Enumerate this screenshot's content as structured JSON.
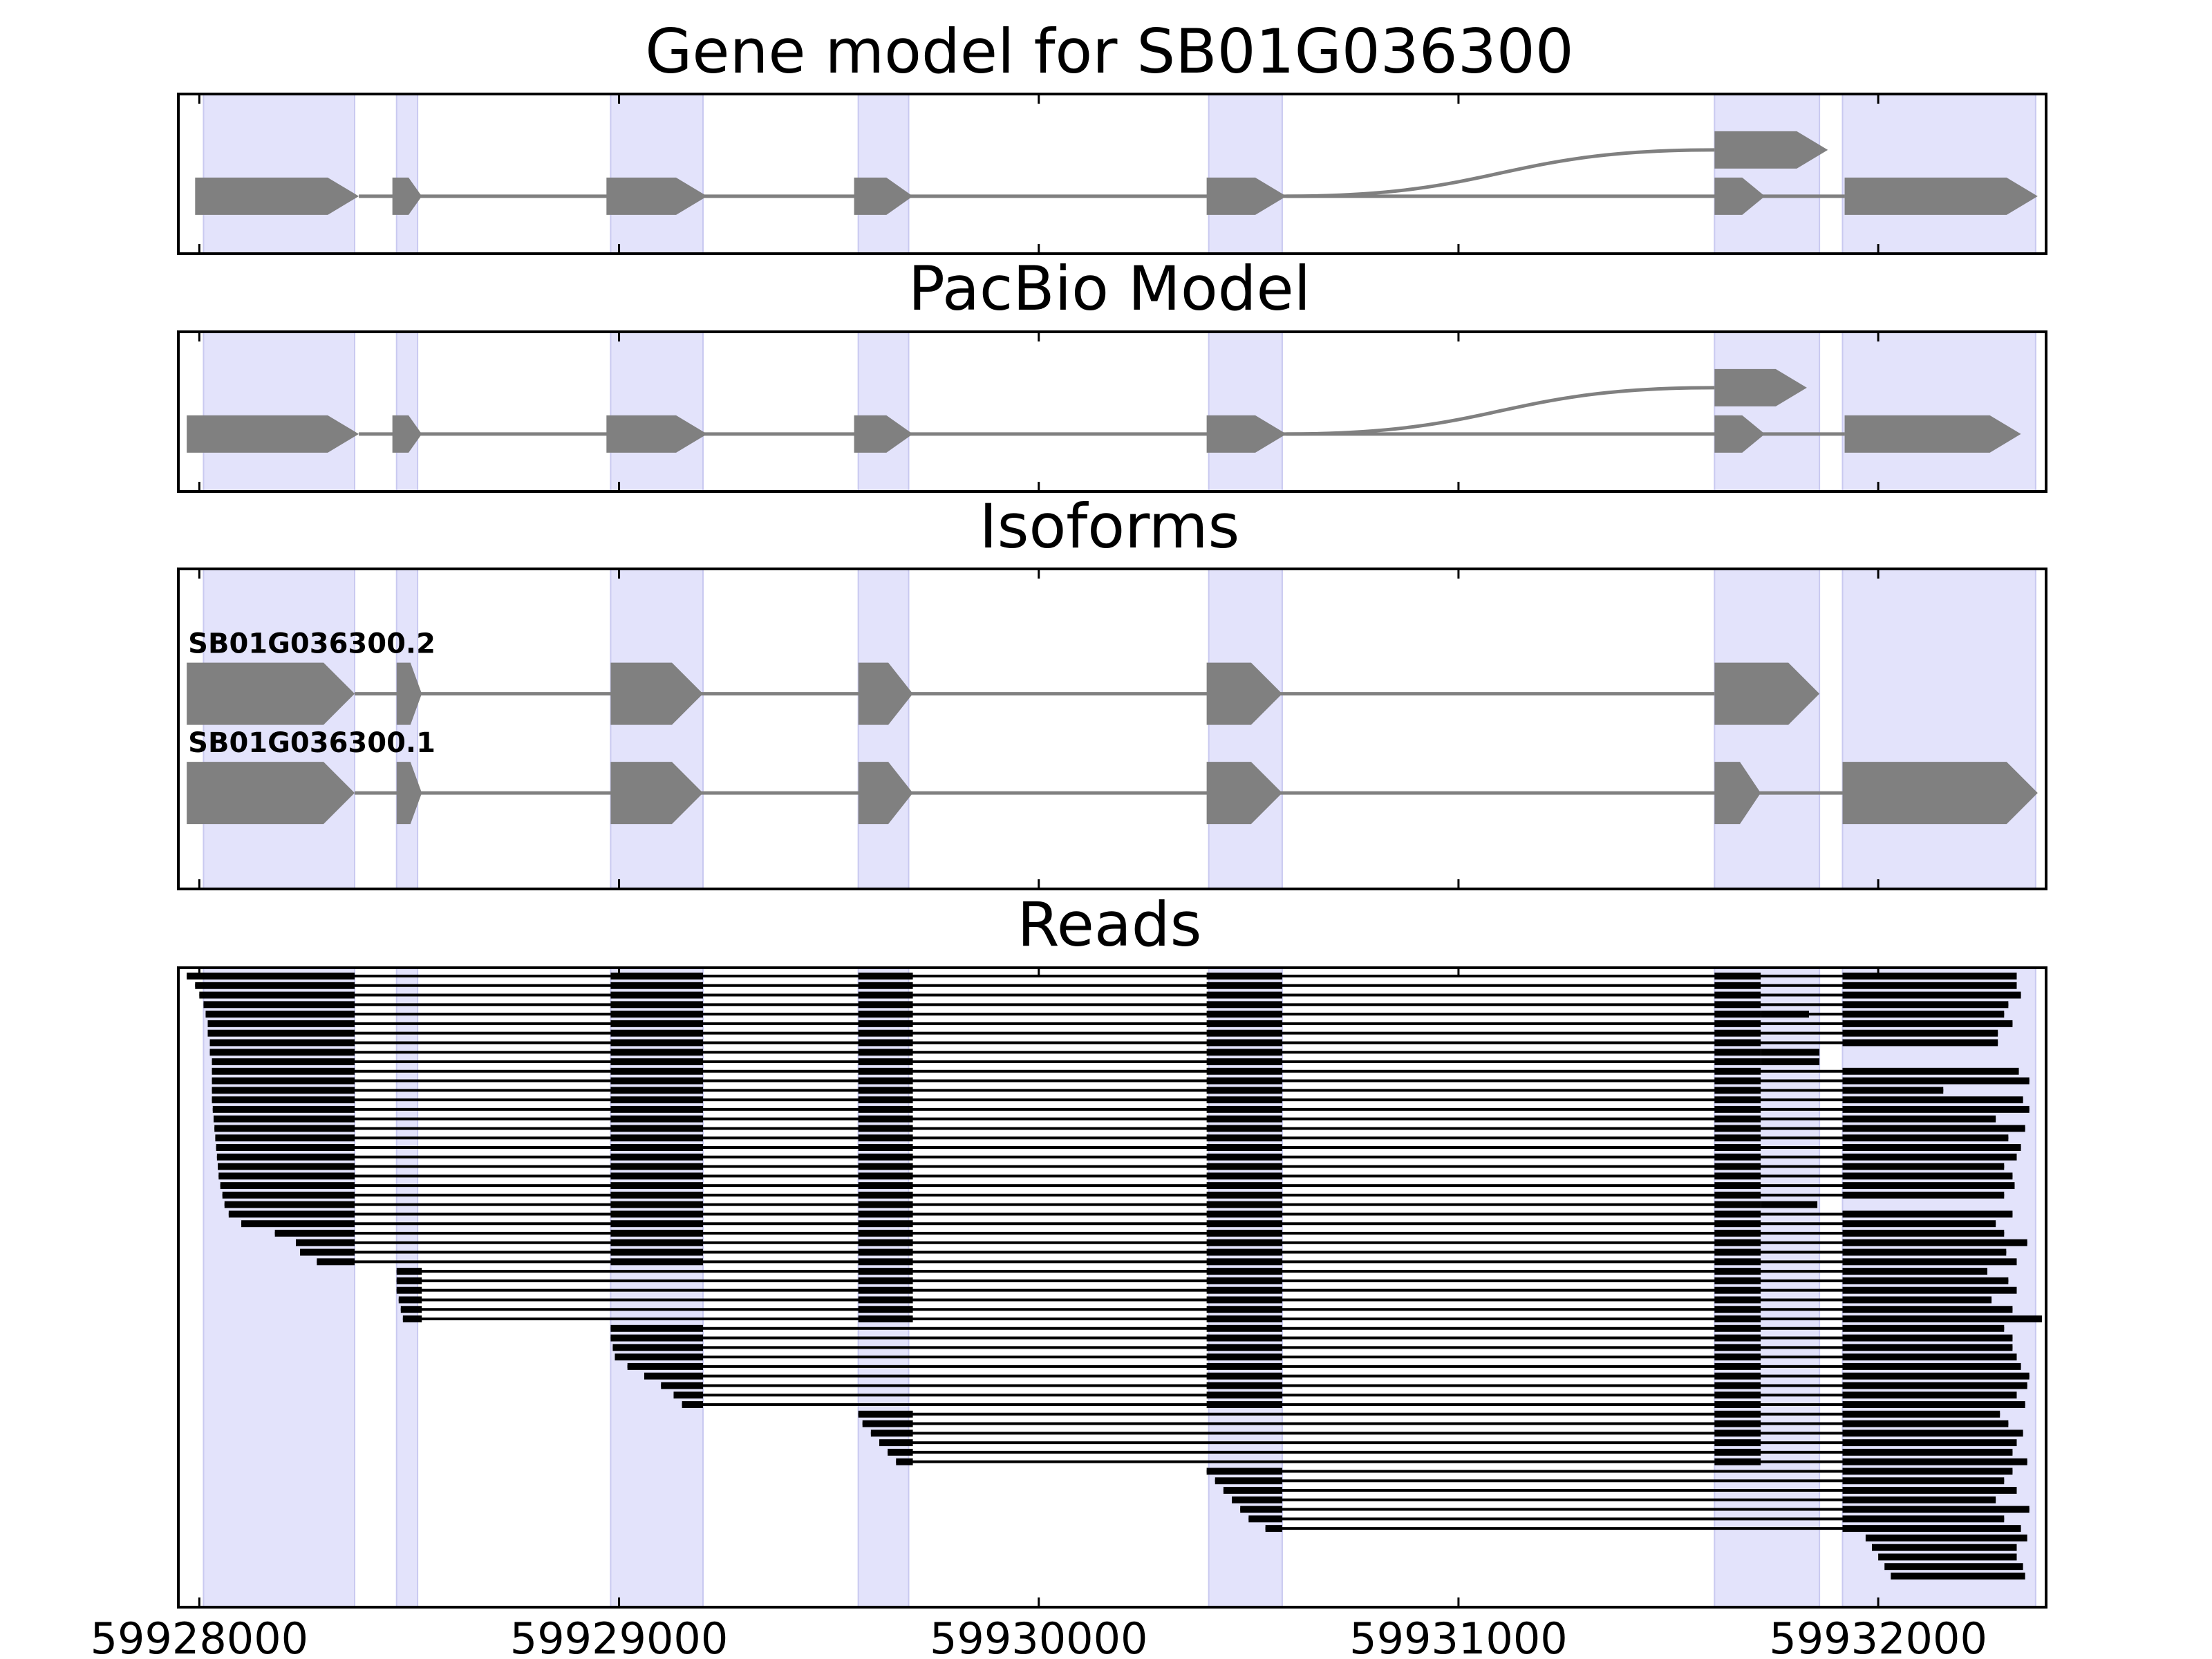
{
  "colors": {
    "exon_band": "#e3e3fb",
    "gene_shape": "#808080",
    "read": "#000000",
    "axes": "#000000",
    "background": "#ffffff"
  },
  "chart_data": {
    "type": "gene-model-track",
    "xlim": [
      59927950,
      59932400
    ],
    "x_ticks": [
      59928000,
      59929000,
      59930000,
      59931000,
      59932000
    ],
    "x_tick_labels": [
      "59928000",
      "59929000",
      "59930000",
      "59931000",
      "59932000"
    ],
    "exon_regions": [
      [
        59928010,
        59928370
      ],
      [
        59928470,
        59928520
      ],
      [
        59928980,
        59929200
      ],
      [
        59929570,
        59929690
      ],
      [
        59930405,
        59930580
      ],
      [
        59931610,
        59931860
      ],
      [
        59931915,
        59932375
      ]
    ],
    "panels": [
      {
        "title": "Gene model for SB01G036300",
        "rows": [
          {
            "name": "",
            "y": 0.36,
            "exons": [
              [
                59927990,
                59928380
              ],
              [
                59928460,
                59928530
              ],
              [
                59928970,
                59929210
              ],
              [
                59929560,
                59929700
              ],
              [
                59930400,
                59930590
              ],
              [
                59931610,
                59931730
              ],
              [
                59931920,
                59932380
              ]
            ]
          }
        ],
        "alt": {
          "y": 0.65,
          "exon": [
            59931610,
            59931880
          ],
          "from": 59930590
        }
      },
      {
        "title": "PacBio Model",
        "rows": [
          {
            "name": "",
            "y": 0.36,
            "exons": [
              [
                59927970,
                59928380
              ],
              [
                59928460,
                59928530
              ],
              [
                59928970,
                59929210
              ],
              [
                59929560,
                59929700
              ],
              [
                59930400,
                59930590
              ],
              [
                59931610,
                59931730
              ],
              [
                59931920,
                59932340
              ]
            ]
          }
        ],
        "alt": {
          "y": 0.65,
          "exon": [
            59931610,
            59931830
          ],
          "from": 59930590
        }
      },
      {
        "title": "Isoforms",
        "rows": [
          {
            "name": "SB01G036300.2",
            "y": 0.61,
            "exons": [
              [
                59927970,
                59928370
              ],
              [
                59928470,
                59928530
              ],
              [
                59928980,
                59929200
              ],
              [
                59929570,
                59929700
              ],
              [
                59930400,
                59930580
              ],
              [
                59931610,
                59931860
              ]
            ]
          },
          {
            "name": "SB01G036300.1",
            "y": 0.3,
            "exons": [
              [
                59927970,
                59928370
              ],
              [
                59928470,
                59928530
              ],
              [
                59928980,
                59929200
              ],
              [
                59929570,
                59929700
              ],
              [
                59930400,
                59930580
              ],
              [
                59931610,
                59931720
              ],
              [
                59931915,
                59932380
              ]
            ]
          }
        ]
      },
      {
        "title": "Reads",
        "read_rows": [
          {
            "first_start": 59927970,
            "first_end": 59928370,
            "last_exon": [
              59931915,
              59932330
            ]
          },
          {
            "first_start": 59927990,
            "first_end": 59928370,
            "last_exon": [
              59931915,
              59932330
            ]
          },
          {
            "first_start": 59928000,
            "first_end": 59928370,
            "last_exon": [
              59931915,
              59932340
            ]
          },
          {
            "first_start": 59928010,
            "first_end": 59928370,
            "last_exon": [
              59931915,
              59932310
            ]
          },
          {
            "first_start": 59928015,
            "first_end": 59928370,
            "last_exon": [
              59931915,
              59932300
            ]
          },
          {
            "first_start": 59928020,
            "first_end": 59928370,
            "last_exon": [
              59931915,
              59932320
            ]
          },
          {
            "first_start": 59928020,
            "first_end": 59928370,
            "last_exon": [
              59931915,
              59932285
            ]
          },
          {
            "first_start": 59928025,
            "first_end": 59928370,
            "last_exon": [
              59931915,
              59932285
            ]
          },
          {
            "first_start": 59928025,
            "first_end": 59928370,
            "last_exon": null
          },
          {
            "first_start": 59928030,
            "first_end": 59928370,
            "last_exon": null
          },
          {
            "first_start": 59928030,
            "first_end": 59928370,
            "last_exon": [
              59931915,
              59932335
            ]
          },
          {
            "first_start": 59928030,
            "first_end": 59928370,
            "last_exon": [
              59931915,
              59932360
            ]
          },
          {
            "first_start": 59928030,
            "first_end": 59928370,
            "last_exon": [
              59931915,
              59932155
            ]
          },
          {
            "first_start": 59928030,
            "first_end": 59928370,
            "last_exon": [
              59931915,
              59932345
            ]
          },
          {
            "first_start": 59928032,
            "first_end": 59928370,
            "last_exon": [
              59931915,
              59932360
            ]
          },
          {
            "first_start": 59928034,
            "first_end": 59928370,
            "last_exon": [
              59931915,
              59932280
            ]
          },
          {
            "first_start": 59928036,
            "first_end": 59928370,
            "last_exon": [
              59931915,
              59932350
            ]
          },
          {
            "first_start": 59928038,
            "first_end": 59928370,
            "last_exon": [
              59931915,
              59932310
            ]
          },
          {
            "first_start": 59928040,
            "first_end": 59928370,
            "last_exon": [
              59931915,
              59932340
            ]
          },
          {
            "first_start": 59928042,
            "first_end": 59928370,
            "last_exon": [
              59931915,
              59932330
            ]
          },
          {
            "first_start": 59928044,
            "first_end": 59928370,
            "last_exon": [
              59931915,
              59932300
            ]
          },
          {
            "first_start": 59928046,
            "first_end": 59928370,
            "last_exon": [
              59931915,
              59932320
            ]
          },
          {
            "first_start": 59928050,
            "first_end": 59928370,
            "last_exon": [
              59931915,
              59932325
            ]
          },
          {
            "first_start": 59928055,
            "first_end": 59928370,
            "last_exon": [
              59931915,
              59932300
            ]
          },
          {
            "first_start": 59928060,
            "first_end": 59928370,
            "last_exon": null
          },
          {
            "first_start": 59928070,
            "first_end": 59928370,
            "last_exon": [
              59931915,
              59932320
            ]
          },
          {
            "first_start": 59928100,
            "first_end": 59928370,
            "last_exon": [
              59931915,
              59932280
            ]
          },
          {
            "first_start": 59928180,
            "first_end": 59928370,
            "last_exon": [
              59931915,
              59932300
            ]
          },
          {
            "first_start": 59928230,
            "first_end": 59928370,
            "last_exon": [
              59931915,
              59932355
            ]
          },
          {
            "first_start": 59928240,
            "first_end": 59928370,
            "last_exon": [
              59931915,
              59932305
            ]
          },
          {
            "first_start": 59928280,
            "first_end": 59928370,
            "last_exon": [
              59931915,
              59932330
            ]
          },
          {
            "first_start": 59928470,
            "first_end": 59928530,
            "last_exon": [
              59931915,
              59932260
            ]
          },
          {
            "first_start": 59928470,
            "first_end": 59928530,
            "last_exon": [
              59931915,
              59932310
            ]
          },
          {
            "first_start": 59928470,
            "first_end": 59928530,
            "last_exon": [
              59931915,
              59932330
            ]
          },
          {
            "first_start": 59928475,
            "first_end": 59928530,
            "last_exon": [
              59931915,
              59932270
            ]
          },
          {
            "first_start": 59928480,
            "first_end": 59928530,
            "last_exon": [
              59931915,
              59932320
            ]
          },
          {
            "first_start": 59928485,
            "first_end": 59928530,
            "last_exon": [
              59931915,
              59932390
            ]
          },
          {
            "first_start": 59928980,
            "first_end": 59929200,
            "last_exon": [
              59931915,
              59932300
            ]
          },
          {
            "first_start": 59928980,
            "first_end": 59929200,
            "last_exon": [
              59931915,
              59932320
            ]
          },
          {
            "first_start": 59928985,
            "first_end": 59929200,
            "last_exon": [
              59931915,
              59932320
            ]
          },
          {
            "first_start": 59928990,
            "first_end": 59929200,
            "last_exon": [
              59931915,
              59932330
            ]
          },
          {
            "first_start": 59929020,
            "first_end": 59929200,
            "last_exon": [
              59931915,
              59932340
            ]
          },
          {
            "first_start": 59929060,
            "first_end": 59929200,
            "last_exon": [
              59931915,
              59932360
            ]
          },
          {
            "first_start": 59929100,
            "first_end": 59929200,
            "last_exon": [
              59931915,
              59932355
            ]
          },
          {
            "first_start": 59929130,
            "first_end": 59929200,
            "last_exon": [
              59931915,
              59932330
            ]
          },
          {
            "first_start": 59929150,
            "first_end": 59929200,
            "last_exon": [
              59931915,
              59932350
            ]
          },
          {
            "first_start": 59929570,
            "first_end": 59929700,
            "last_exon": [
              59931915,
              59932290
            ]
          },
          {
            "first_start": 59929580,
            "first_end": 59929700,
            "last_exon": [
              59931915,
              59932310
            ]
          },
          {
            "first_start": 59929600,
            "first_end": 59929700,
            "last_exon": [
              59931915,
              59932345
            ]
          },
          {
            "first_start": 59929620,
            "first_end": 59929700,
            "last_exon": [
              59931915,
              59932330
            ]
          },
          {
            "first_start": 59929640,
            "first_end": 59929700,
            "last_exon": [
              59931915,
              59932320
            ]
          },
          {
            "first_start": 59929660,
            "first_end": 59929700,
            "last_exon": [
              59931915,
              59932355
            ]
          },
          {
            "first_start": 59930400,
            "first_end": 59930580,
            "last_exon": [
              59931915,
              59932320
            ]
          },
          {
            "first_start": 59930420,
            "first_end": 59930580,
            "last_exon": [
              59931915,
              59932300
            ]
          },
          {
            "first_start": 59930440,
            "first_end": 59930580,
            "last_exon": [
              59931915,
              59932330
            ]
          },
          {
            "first_start": 59930460,
            "first_end": 59930580,
            "last_exon": [
              59931915,
              59932280
            ]
          },
          {
            "first_start": 59930480,
            "first_end": 59930580,
            "last_exon": [
              59931915,
              59932360
            ]
          },
          {
            "first_start": 59930500,
            "first_end": 59930580,
            "last_exon": [
              59931915,
              59932300
            ]
          },
          {
            "first_start": 59930540,
            "first_end": 59930580,
            "last_exon": [
              59931915,
              59932340
            ]
          }
        ],
        "partial_reads": [
          {
            "row": 4,
            "span": [
              59931720,
              59931835
            ]
          },
          {
            "row": 8,
            "span": [
              59931720,
              59931860
            ]
          },
          {
            "row": 9,
            "span": [
              59931720,
              59931860
            ]
          },
          {
            "row": 24,
            "span": [
              59931720,
              59931855
            ]
          }
        ],
        "tail_reads": [
          [
            59931970,
            59932355
          ],
          [
            59931985,
            59932330
          ],
          [
            59932000,
            59932330
          ],
          [
            59932015,
            59932345
          ],
          [
            59932030,
            59932350
          ]
        ]
      }
    ]
  }
}
